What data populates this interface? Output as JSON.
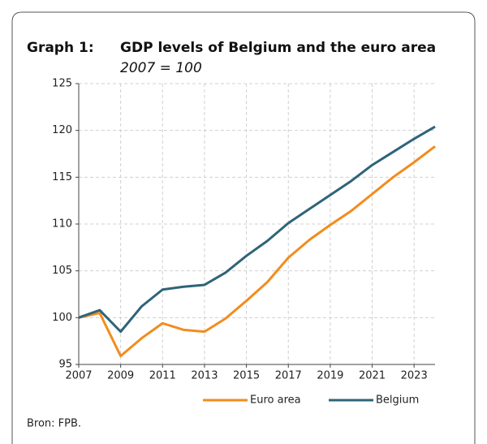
{
  "chart_data": {
    "type": "line",
    "title_label": "Graph 1:",
    "title": "GDP levels of Belgium and the euro area",
    "subtitle": "2007 = 100",
    "x": [
      2007,
      2008,
      2009,
      2010,
      2011,
      2012,
      2013,
      2014,
      2015,
      2016,
      2017,
      2018,
      2019,
      2020,
      2021,
      2022,
      2023,
      2024
    ],
    "series": [
      {
        "name": "Euro area",
        "color": "#f28c1e",
        "values": [
          100,
          100.5,
          95.9,
          97.8,
          99.4,
          98.7,
          98.5,
          99.9,
          101.8,
          103.8,
          106.4,
          108.3,
          109.9,
          111.4,
          113.2,
          115,
          116.6,
          118.3
        ]
      },
      {
        "name": "Belgium",
        "color": "#2e6479",
        "values": [
          100,
          100.8,
          98.5,
          101.2,
          103.0,
          103.3,
          103.5,
          104.8,
          106.6,
          108.2,
          110.1,
          111.6,
          113.1,
          114.6,
          116.3,
          117.7,
          119.1,
          120.4
        ]
      }
    ],
    "xlim": [
      2007,
      2024
    ],
    "xticks": [
      2007,
      2009,
      2011,
      2013,
      2015,
      2017,
      2019,
      2021,
      2023
    ],
    "ylim": [
      95,
      125
    ],
    "yticks": [
      95,
      100,
      105,
      110,
      115,
      120,
      125
    ],
    "grid": true,
    "legend": "bottom",
    "source": "Bron: FPB."
  }
}
